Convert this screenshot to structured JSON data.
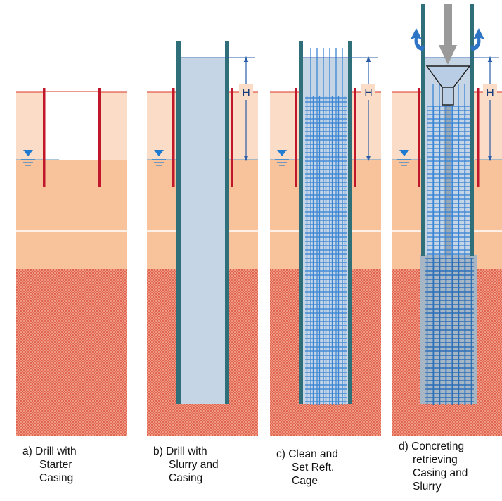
{
  "height_label": "H",
  "stages": [
    {
      "letter": "a)",
      "caption_first": "Drill with",
      "caption_rest": [
        "Starter",
        "Casing"
      ]
    },
    {
      "letter": "b)",
      "caption_first": "Drill with",
      "caption_rest": [
        "Slurry and",
        "Casing"
      ]
    },
    {
      "letter": "c)",
      "caption_first": "Clean and",
      "caption_rest": [
        "Set Reft.",
        "Cage"
      ]
    },
    {
      "letter": "d)",
      "caption_first": "Concreting",
      "caption_rest": [
        "retrieving",
        "Casing and",
        "Slurry"
      ]
    }
  ],
  "colors": {
    "upper_soil": "#fbdcc6",
    "lower_soil": "#f8c39b",
    "clay_base": "#f3a48e",
    "clay_hatch": "#d9503c",
    "casing": "#2e6f7a",
    "starter_casing": "#c0172a",
    "slurry": "#c5d5e6",
    "cage": "#3b86d4",
    "concrete": "#a7b6c4",
    "water_symbol": "#1e7bd1",
    "dimension_line": "#2a5ea8",
    "flow_arrow": "#2d74c4",
    "pour_arrow": "#9a9a9a"
  }
}
